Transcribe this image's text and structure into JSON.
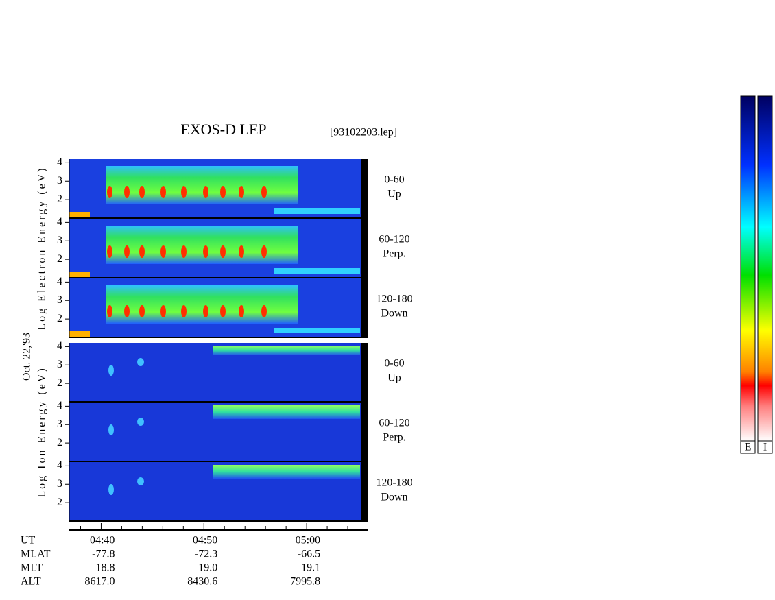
{
  "chart_data": {
    "type": "spectrogram",
    "title": "EXOS-D LEP",
    "file": "[93102203.lep]",
    "date": "Oct. 22,'93",
    "groups": [
      {
        "ylabel": "Log Electron Energy (eV)",
        "panels": [
          {
            "angle": "0-60",
            "direction": "Up"
          },
          {
            "angle": "60-120",
            "direction": "Perp."
          },
          {
            "angle": "120-180",
            "direction": "Down"
          }
        ]
      },
      {
        "ylabel": "Log Ion Energy (eV)",
        "panels": [
          {
            "angle": "0-60",
            "direction": "Up"
          },
          {
            "angle": "60-120",
            "direction": "Perp."
          },
          {
            "angle": "120-180",
            "direction": "Down"
          }
        ]
      }
    ],
    "ylim": [
      1,
      4.2
    ],
    "yticks": [
      2,
      3,
      4
    ],
    "xlim": [
      276.9,
      306
    ],
    "xticks": [
      {
        "value": 280,
        "label": "04:40"
      },
      {
        "value": 290,
        "label": "04:50"
      },
      {
        "value": 300,
        "label": "05:00"
      }
    ],
    "xminorticks": [
      278,
      282,
      284,
      286,
      288,
      292,
      294,
      296,
      298,
      302,
      304
    ],
    "ephemeris_time_label": "UT",
    "ephemeris": [
      {
        "name": "MLAT",
        "values": [
          -77.8,
          -72.3,
          -66.5
        ]
      },
      {
        "name": "MLT",
        "values": [
          18.8,
          19.0,
          19.1
        ],
        "value_labels": [
          "18.8",
          "19.0",
          "19.1"
        ]
      },
      {
        "name": "ALT",
        "values": [
          8617.0,
          8430.6,
          7995.8
        ],
        "value_labels": [
          "8617.0",
          "8430.6",
          "7995.8"
        ]
      }
    ],
    "colorbars": [
      "E",
      "I"
    ]
  }
}
